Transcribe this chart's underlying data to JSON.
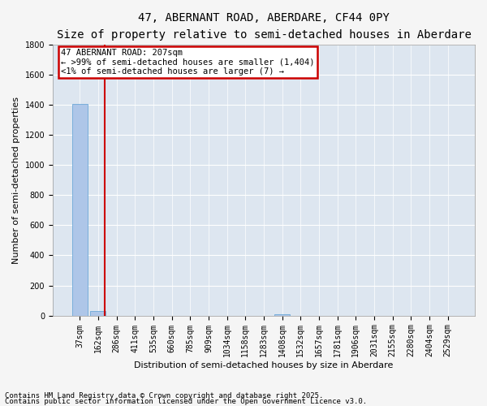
{
  "title1": "47, ABERNANT ROAD, ABERDARE, CF44 0PY",
  "title2": "Size of property relative to semi-detached houses in Aberdare",
  "xlabel": "Distribution of semi-detached houses by size in Aberdare",
  "ylabel": "Number of semi-detached properties",
  "categories": [
    "37sqm",
    "162sqm",
    "286sqm",
    "411sqm",
    "535sqm",
    "660sqm",
    "785sqm",
    "909sqm",
    "1034sqm",
    "1158sqm",
    "1283sqm",
    "1408sqm",
    "1532sqm",
    "1657sqm",
    "1781sqm",
    "1906sqm",
    "2031sqm",
    "2155sqm",
    "2280sqm",
    "2404sqm",
    "2529sqm"
  ],
  "values": [
    1404,
    30,
    0,
    0,
    0,
    0,
    0,
    0,
    0,
    0,
    0,
    7,
    0,
    0,
    0,
    0,
    0,
    0,
    0,
    0,
    0
  ],
  "bar_color": "#aec6e8",
  "bar_edge_color": "#5a9fd4",
  "property_line_color": "#cc0000",
  "annotation_line1": "47 ABERNANT ROAD: 207sqm",
  "annotation_line2": "← >99% of semi-detached houses are smaller (1,404)",
  "annotation_line3": "<1% of semi-detached houses are larger (7) →",
  "annotation_box_color": "#cc0000",
  "ylim": [
    0,
    1800
  ],
  "yticks": [
    0,
    200,
    400,
    600,
    800,
    1000,
    1200,
    1400,
    1600,
    1800
  ],
  "background_color": "#dde6f0",
  "grid_color": "#ffffff",
  "footer1": "Contains HM Land Registry data © Crown copyright and database right 2025.",
  "footer2": "Contains public sector information licensed under the Open Government Licence v3.0.",
  "title1_fontsize": 10,
  "title2_fontsize": 9,
  "xlabel_fontsize": 8,
  "ylabel_fontsize": 8,
  "tick_fontsize": 7,
  "annotation_fontsize": 7.5,
  "footer_fontsize": 6.5
}
